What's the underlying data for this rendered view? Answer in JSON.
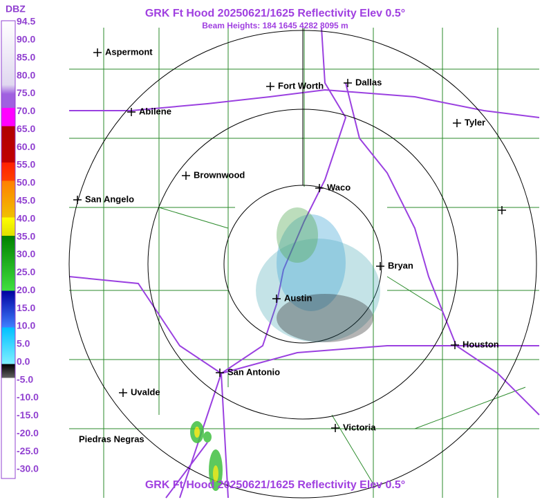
{
  "header": {
    "title": "GRK Ft Hood 20250621/1625 Reflectivity Elev 0.5°",
    "subtitle": "Beam Heights: 184 1645 4282 8095 m"
  },
  "footer": {
    "title": "GRK Ft Hood 20250621/1625 Reflectivity Elev 0.5°"
  },
  "legend": {
    "unit": "DBZ",
    "labels": [
      "94.5",
      "90.0",
      "85.0",
      "80.0",
      "75.0",
      "70.0",
      "65.0",
      "60.0",
      "55.0",
      "50.0",
      "45.0",
      "40.0",
      "35.0",
      "30.0",
      "25.0",
      "20.0",
      "15.0",
      "10.0",
      "5.0",
      "0.0",
      "-5.0",
      "-10.0",
      "-15.0",
      "-20.0",
      "-25.0",
      "-30.0"
    ]
  },
  "cities": [
    "Aspermont",
    "Fort Worth",
    "Dallas",
    "Abilene",
    "Tyler",
    "Brownwood",
    "Waco",
    "San Angelo",
    "Bryan",
    "Austin",
    "Houston",
    "San Antonio",
    "Uvalde",
    "Victoria",
    "Piedras Negras"
  ]
}
